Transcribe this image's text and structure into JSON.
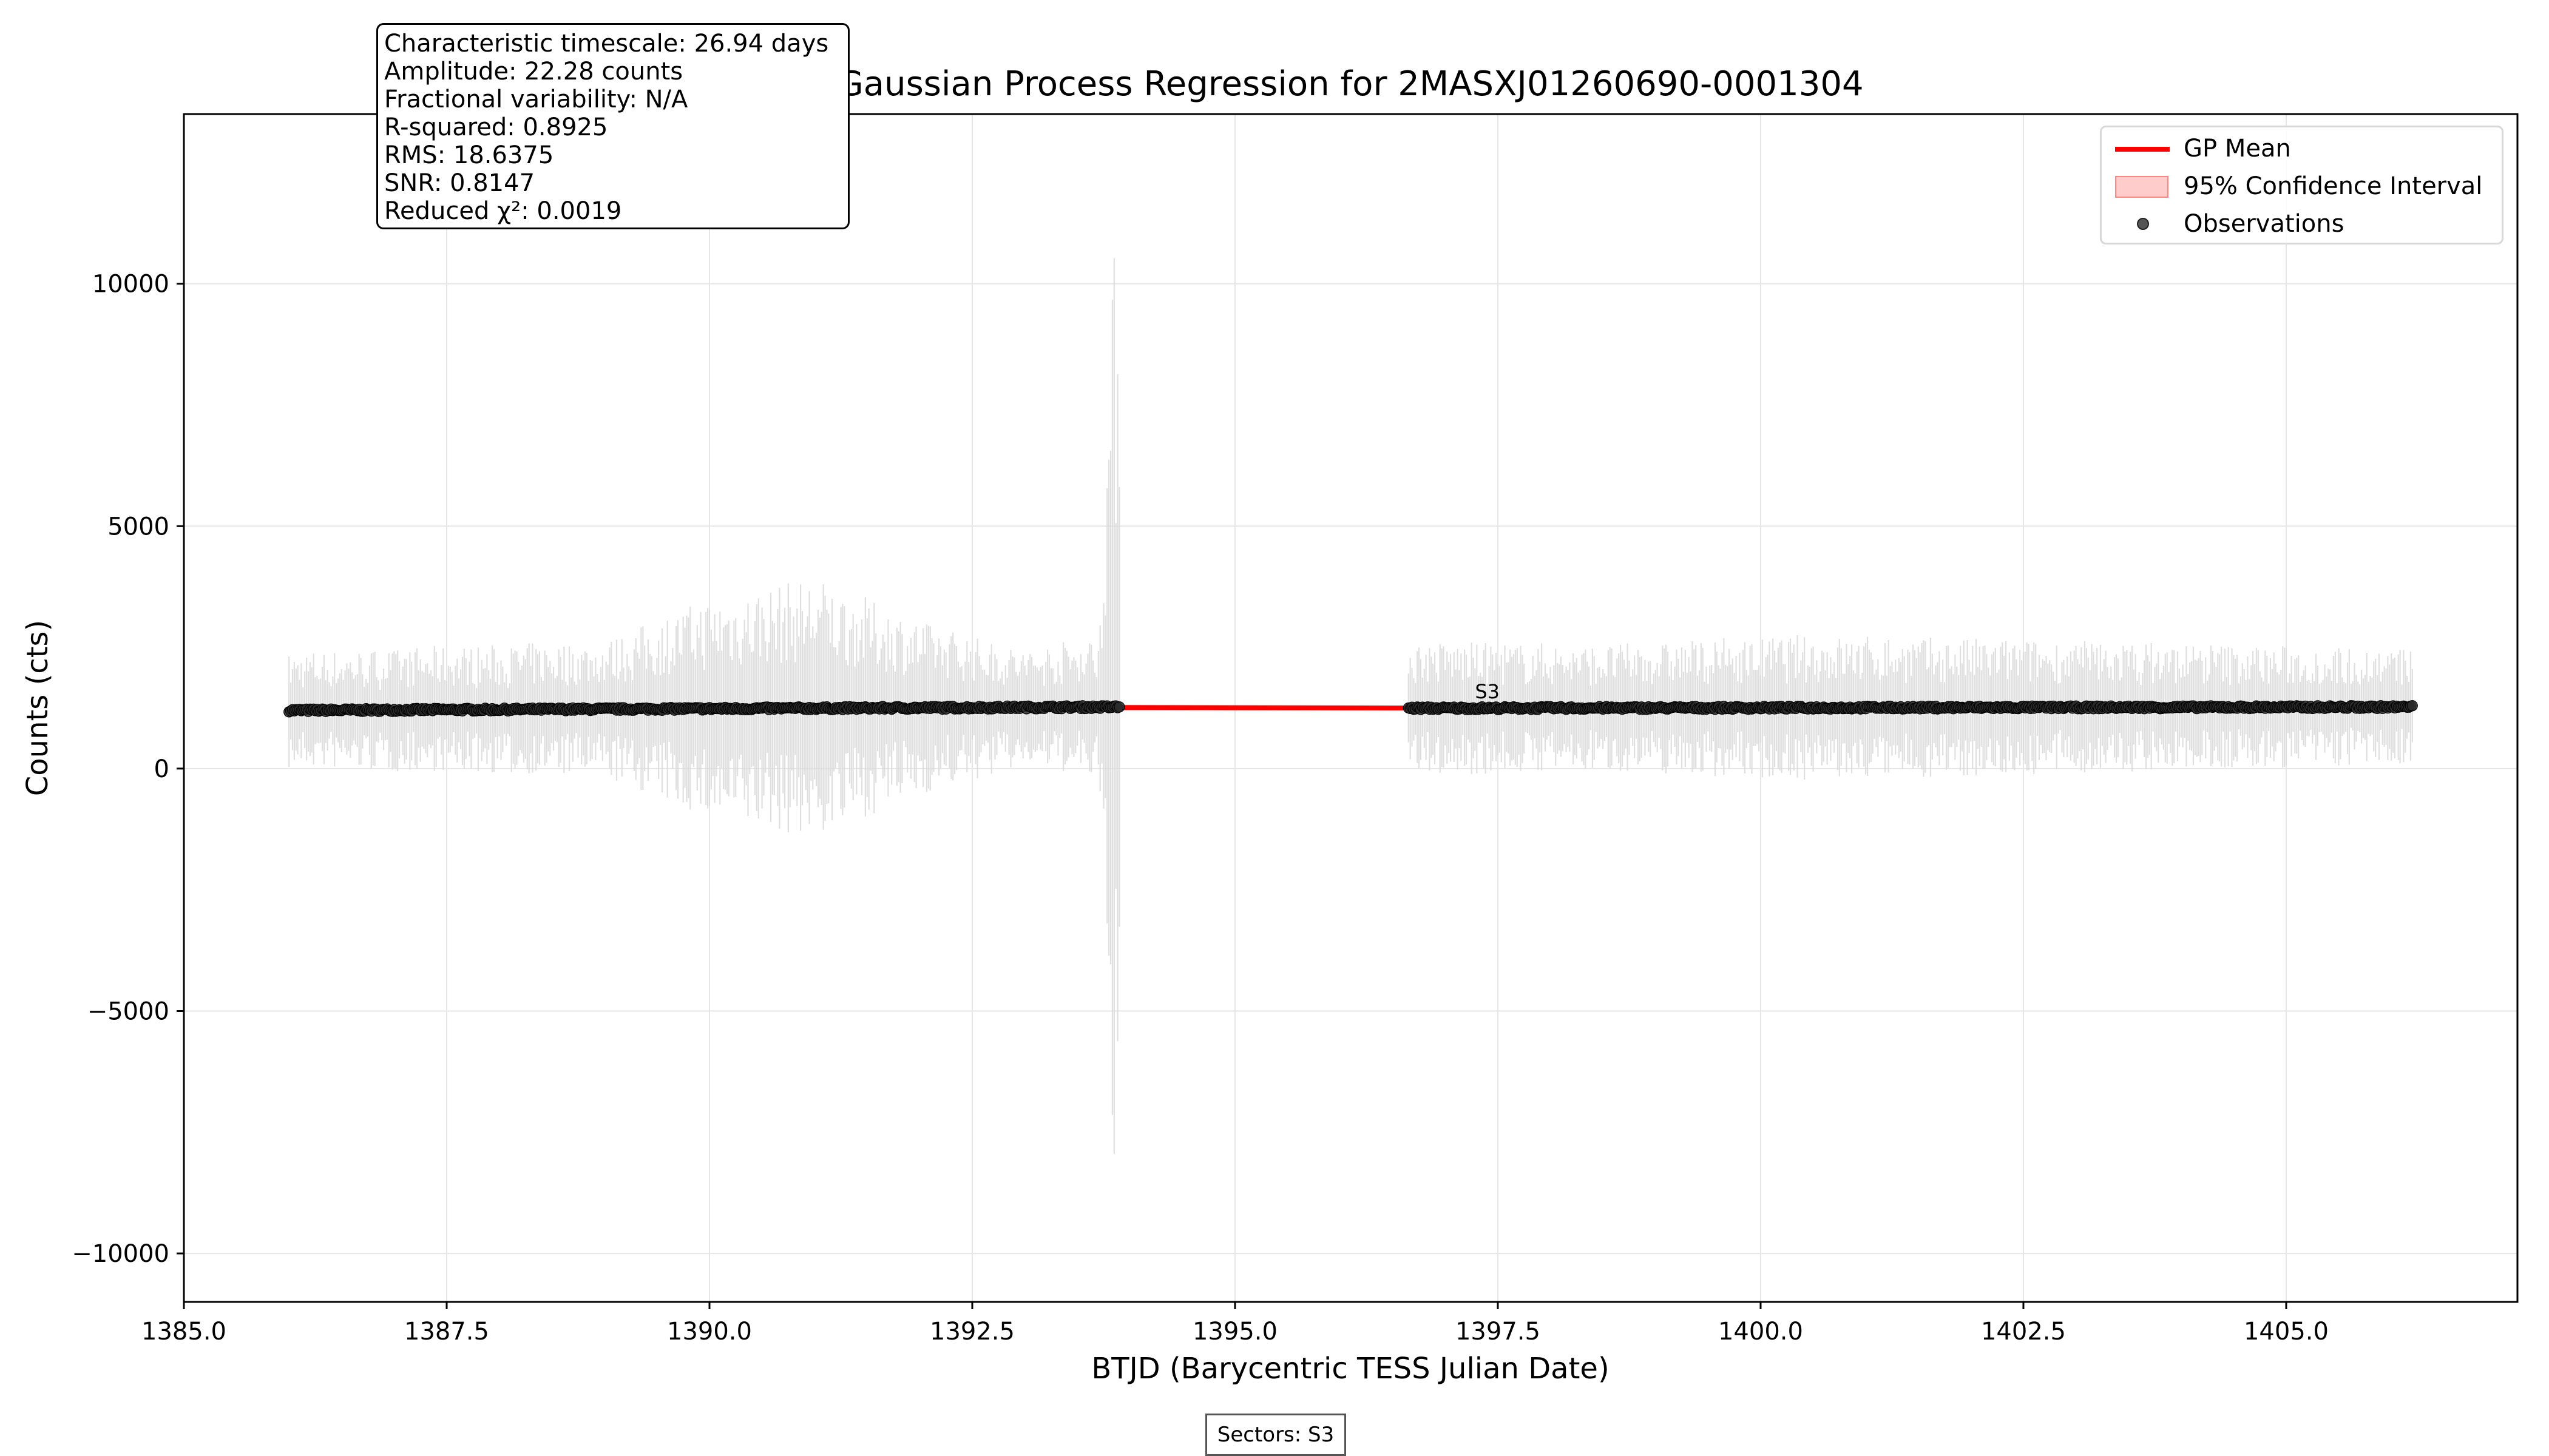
{
  "chart_data": {
    "type": "scatter",
    "title": "Gaussian Process Regression for 2MASXJ01260690-0001304",
    "xlabel": "BTJD (Barycentric TESS Julian Date)",
    "ylabel": "Counts (cts)",
    "xlim": [
      1385.0,
      1407.2
    ],
    "ylim": [
      -11000,
      13500
    ],
    "x_ticks": [
      1385.0,
      1387.5,
      1390.0,
      1392.5,
      1395.0,
      1397.5,
      1400.0,
      1402.5,
      1405.0
    ],
    "x_tick_labels": [
      "1385.0",
      "1387.5",
      "1390.0",
      "1392.5",
      "1395.0",
      "1397.5",
      "1400.0",
      "1402.5",
      "1405.0"
    ],
    "y_ticks": [
      -10000,
      -5000,
      0,
      5000,
      10000
    ],
    "y_tick_labels": [
      "−10000",
      "−5000",
      "0",
      "5000",
      "10000"
    ],
    "grid": true,
    "legend_position": "top-right",
    "sector_annotation": {
      "text": "S3",
      "x": 1397.4,
      "y": 1450
    },
    "series": [
      {
        "name": "GP Mean",
        "kind": "line",
        "color": "#ff0000",
        "x": [
          1386.0,
          1388.0,
          1390.0,
          1392.0,
          1393.5,
          1393.9,
          1395.0,
          1396.6,
          1398.0,
          1400.0,
          1402.0,
          1404.0,
          1406.2
        ],
        "y": [
          1200,
          1210,
          1220,
          1230,
          1240,
          1260,
          1255,
          1250,
          1255,
          1260,
          1265,
          1265,
          1270
        ]
      },
      {
        "name": "95% Confidence Interval",
        "kind": "band",
        "color": "#ff0000",
        "x": [
          1386.0,
          1393.9,
          1396.6,
          1406.2
        ],
        "lower": [
          1150,
          1200,
          1200,
          1220
        ],
        "upper": [
          1250,
          1320,
          1300,
          1320
        ]
      },
      {
        "name": "Observations",
        "kind": "scatter",
        "color": "#222222",
        "segments": [
          {
            "x_start": 1386.0,
            "x_end": 1393.9,
            "y_start": 1200,
            "y_end": 1270
          },
          {
            "x_start": 1396.65,
            "x_end": 1406.2,
            "y_start": 1245,
            "y_end": 1270
          }
        ],
        "error_envelope": [
          {
            "x": 1386.0,
            "err": 1200
          },
          {
            "x": 1387.5,
            "err": 1300
          },
          {
            "x": 1389.0,
            "err": 1400
          },
          {
            "x": 1390.0,
            "err": 2300
          },
          {
            "x": 1391.0,
            "err": 2700
          },
          {
            "x": 1392.0,
            "err": 1800
          },
          {
            "x": 1393.0,
            "err": 1200
          },
          {
            "x": 1393.7,
            "err": 1500
          },
          {
            "x": 1393.85,
            "err": 9500
          },
          {
            "x": 1393.9,
            "err": 10500
          },
          {
            "x": 1396.65,
            "err": 1400
          },
          {
            "x": 1398.5,
            "err": 1300
          },
          {
            "x": 1400.5,
            "err": 1500
          },
          {
            "x": 1402.5,
            "err": 1400
          },
          {
            "x": 1404.5,
            "err": 1300
          },
          {
            "x": 1406.2,
            "err": 1200
          }
        ]
      }
    ]
  },
  "stats": {
    "timescale": "Characteristic timescale: 26.94 days",
    "amplitude": "Amplitude: 22.28 counts",
    "frac_var": "Fractional variability: N/A",
    "r_squared": "R-squared: 0.8925",
    "rms": "RMS: 18.6375",
    "snr": "SNR: 0.8147",
    "chi2": "Reduced χ²: 0.0019"
  },
  "sectors_label": "Sectors: S3"
}
